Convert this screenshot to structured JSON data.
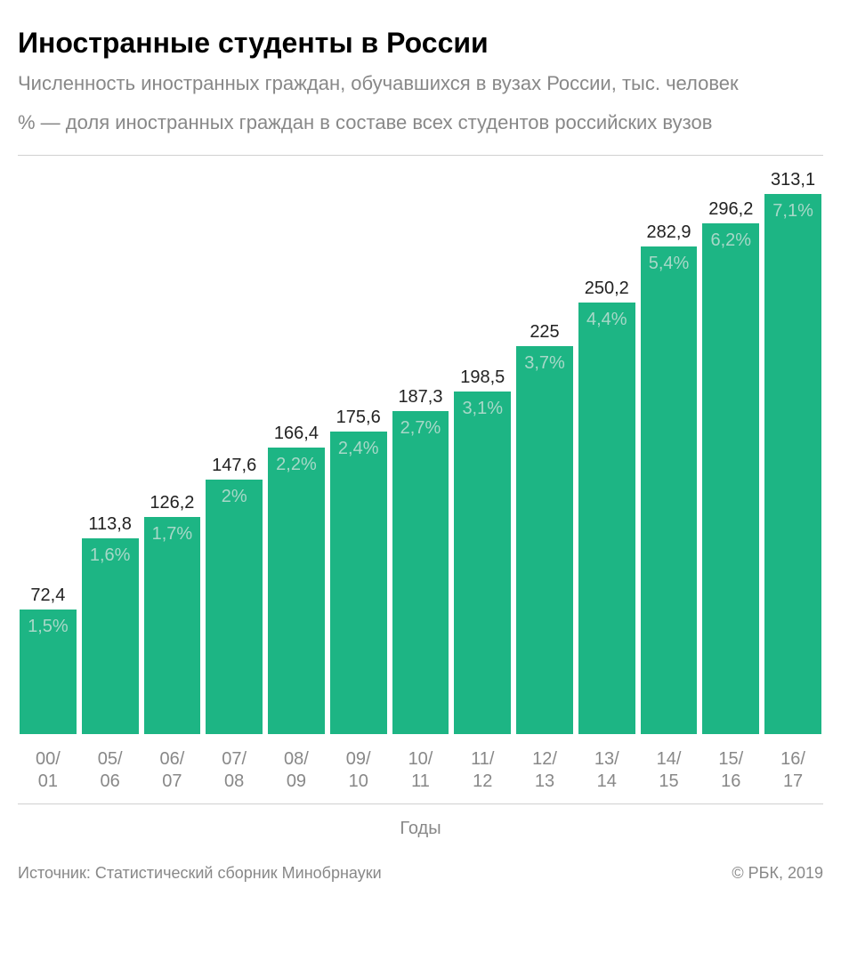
{
  "header": {
    "title": "Иностранные студенты в России",
    "subtitle": "Численность иностранных граждан, обучавшихся в вузах России, тыс. человек",
    "legend_note": "% — доля иностранных граждан в составе всех студентов российских вузов"
  },
  "chart": {
    "type": "bar",
    "bar_color": "#1db584",
    "percent_text_color": "#a8d8c8",
    "value_text_color": "#222222",
    "label_text_color": "#888888",
    "border_color": "#d0d0d0",
    "background_color": "#ffffff",
    "value_fontsize": 20,
    "percent_fontsize": 20,
    "label_fontsize": 20,
    "max_value": 330,
    "axis_title": "Годы",
    "data": [
      {
        "label_line1": "00/",
        "label_line2": "01",
        "value": 72.4,
        "value_label": "72,4",
        "percent": "1,5%"
      },
      {
        "label_line1": "05/",
        "label_line2": "06",
        "value": 113.8,
        "value_label": "113,8",
        "percent": "1,6%"
      },
      {
        "label_line1": "06/",
        "label_line2": "07",
        "value": 126.2,
        "value_label": "126,2",
        "percent": "1,7%"
      },
      {
        "label_line1": "07/",
        "label_line2": "08",
        "value": 147.6,
        "value_label": "147,6",
        "percent": "2%"
      },
      {
        "label_line1": "08/",
        "label_line2": "09",
        "value": 166.4,
        "value_label": "166,4",
        "percent": "2,2%"
      },
      {
        "label_line1": "09/",
        "label_line2": "10",
        "value": 175.6,
        "value_label": "175,6",
        "percent": "2,4%"
      },
      {
        "label_line1": "10/",
        "label_line2": "11",
        "value": 187.3,
        "value_label": "187,3",
        "percent": "2,7%"
      },
      {
        "label_line1": "11/",
        "label_line2": "12",
        "value": 198.5,
        "value_label": "198,5",
        "percent": "3,1%"
      },
      {
        "label_line1": "12/",
        "label_line2": "13",
        "value": 225,
        "value_label": "225",
        "percent": "3,7%"
      },
      {
        "label_line1": "13/",
        "label_line2": "14",
        "value": 250.2,
        "value_label": "250,2",
        "percent": "4,4%"
      },
      {
        "label_line1": "14/",
        "label_line2": "15",
        "value": 282.9,
        "value_label": "282,9",
        "percent": "5,4%"
      },
      {
        "label_line1": "15/",
        "label_line2": "16",
        "value": 296.2,
        "value_label": "296,2",
        "percent": "6,2%"
      },
      {
        "label_line1": "16/",
        "label_line2": "17",
        "value": 313.1,
        "value_label": "313,1",
        "percent": "7,1%"
      }
    ]
  },
  "footer": {
    "source": "Источник: Статистический сборник Минобрнауки",
    "copyright": "© РБК, 2019"
  }
}
